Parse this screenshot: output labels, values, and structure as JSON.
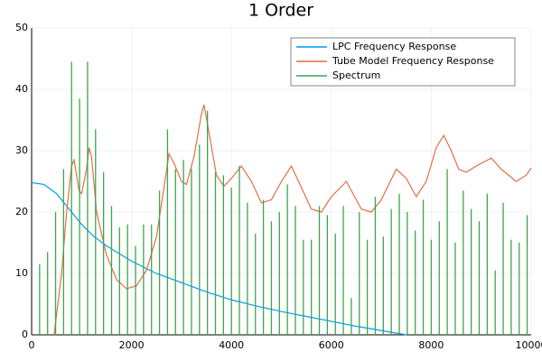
{
  "chart_data": {
    "type": "line",
    "title": "1 Order",
    "xlim": [
      0,
      10000
    ],
    "xticks": [
      0,
      2000,
      4000,
      6000,
      8000,
      10000
    ],
    "ylim": [
      0,
      50
    ],
    "yticks": [
      0,
      10,
      20,
      30,
      40,
      50
    ],
    "grid": true,
    "legend": "top-right",
    "series": [
      {
        "name": "LPC Frequency Response",
        "color": "#009af9",
        "x": [
          0,
          250,
          500,
          750,
          1000,
          1250,
          1500,
          2000,
          2500,
          3000,
          3500,
          4000,
          4500,
          5000,
          5500,
          6000,
          6500,
          7000,
          7500
        ],
        "values": [
          24.8,
          24.5,
          23,
          20.5,
          18,
          16,
          14.5,
          12,
          10,
          8.5,
          7,
          5.7,
          4.7,
          3.8,
          3,
          2.2,
          1.4,
          0.7,
          0
        ]
      },
      {
        "name": "Tube Model Frequency Response",
        "color": "#e26f46",
        "x": [
          450,
          600,
          700,
          800,
          850,
          900,
          950,
          1000,
          1100,
          1150,
          1200,
          1300,
          1500,
          1700,
          1900,
          2100,
          2300,
          2500,
          2650,
          2750,
          2850,
          3000,
          3100,
          3250,
          3400,
          3450,
          3550,
          3700,
          3850,
          4000,
          4200,
          4400,
          4600,
          4800,
          5000,
          5200,
          5400,
          5600,
          5800,
          6000,
          6300,
          6600,
          6800,
          7000,
          7300,
          7500,
          7700,
          7900,
          8100,
          8250,
          8400,
          8550,
          8700,
          8900,
          9200,
          9400,
          9700,
          9900,
          10000
        ],
        "values": [
          0,
          10,
          20,
          27.5,
          28.5,
          26,
          23.5,
          23,
          27,
          30.5,
          29,
          20,
          13,
          9,
          7.5,
          8,
          10.5,
          16,
          24,
          29.5,
          28,
          25,
          24.5,
          29,
          36,
          37.5,
          33,
          26,
          24.2,
          25.5,
          27.5,
          25,
          21.5,
          22,
          25,
          27.5,
          24,
          20.5,
          20,
          22.5,
          25,
          20.5,
          20,
          22,
          27,
          25.5,
          22.5,
          25,
          30.5,
          32.5,
          30,
          27,
          26.5,
          27.5,
          28.8,
          27,
          25,
          26,
          27.2
        ]
      },
      {
        "name": "Spectrum",
        "color": "#3ea44e",
        "type": "stem",
        "x": [
          160,
          320,
          480,
          640,
          800,
          960,
          1120,
          1280,
          1440,
          1600,
          1760,
          1920,
          2080,
          2240,
          2400,
          2560,
          2720,
          2880,
          3040,
          3200,
          3360,
          3520,
          3680,
          3840,
          4000,
          4160,
          4320,
          4480,
          4640,
          4800,
          4960,
          5120,
          5280,
          5440,
          5600,
          5760,
          5920,
          6080,
          6240,
          6400,
          6560,
          6720,
          6880,
          7040,
          7200,
          7360,
          7520,
          7680,
          7840,
          8000,
          8160,
          8320,
          8480,
          8640,
          8800,
          8960,
          9120,
          9280,
          9440,
          9600,
          9760,
          9920
        ],
        "values": [
          11.5,
          13.5,
          20,
          27,
          44.5,
          38.5,
          44.5,
          33.5,
          26.5,
          21,
          17.5,
          18,
          14.5,
          18,
          18,
          23.5,
          33.5,
          27,
          28.5,
          27,
          31,
          36.5,
          26.5,
          26,
          24,
          27.5,
          21.5,
          16.5,
          22,
          18.5,
          20,
          24.5,
          21,
          15.5,
          15.5,
          21,
          19.5,
          16.5,
          21,
          6,
          20,
          15.5,
          22.5,
          16,
          20.5,
          23,
          20,
          17,
          22,
          15.5,
          18.5,
          27,
          15,
          23.5,
          20.5,
          18.5,
          23,
          10.5,
          21.5,
          15.5,
          15,
          19.5
        ]
      }
    ]
  }
}
